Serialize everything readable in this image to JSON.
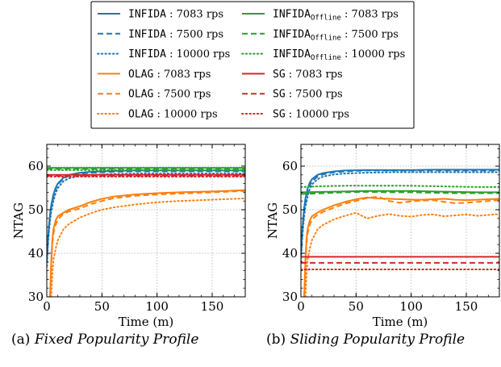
{
  "chart_data": [
    {
      "type": "line",
      "caption_tag": "(a)",
      "caption_title": "Fixed Popularity Profile",
      "xlabel": "Time (m)",
      "ylabel": "NTAG",
      "xlim": [
        0,
        180
      ],
      "ylim": [
        30,
        65
      ],
      "xticks": [
        0,
        50,
        100,
        150
      ],
      "yticks": [
        30,
        40,
        50,
        60
      ],
      "grid": true,
      "series": [
        {
          "id": "infida_7083",
          "color": "#1f77b4",
          "dash": "solid",
          "x": [
            0,
            1,
            2,
            3,
            4,
            6,
            8,
            10,
            15,
            20,
            30,
            40,
            60,
            80,
            100,
            120,
            150,
            180
          ],
          "y": [
            39,
            43,
            46.5,
            49,
            51,
            53.5,
            55,
            56,
            57.3,
            58,
            58.5,
            58.7,
            58.9,
            59,
            59,
            59,
            59,
            59
          ]
        },
        {
          "id": "infida_7500",
          "color": "#1f77b4",
          "dash": "dashed",
          "x": [
            0,
            1,
            2,
            3,
            4,
            6,
            8,
            10,
            15,
            20,
            30,
            40,
            60,
            80,
            100,
            120,
            150,
            180
          ],
          "y": [
            38,
            42.5,
            46,
            48.5,
            50.5,
            53,
            54.7,
            55.8,
            57.1,
            57.8,
            58.3,
            58.5,
            58.7,
            58.8,
            58.8,
            58.8,
            58.8,
            58.8
          ]
        },
        {
          "id": "infida_10000",
          "color": "#1f77b4",
          "dash": "dotted",
          "x": [
            0,
            1,
            2,
            3,
            4,
            6,
            8,
            10,
            15,
            20,
            30,
            40,
            60,
            80,
            100,
            120,
            150,
            180
          ],
          "y": [
            37,
            41.5,
            45,
            47.5,
            49.5,
            52,
            53.8,
            55,
            56.5,
            57.2,
            57.8,
            58,
            58.2,
            58.3,
            58.3,
            58.3,
            58.3,
            58.3
          ]
        },
        {
          "id": "offline_7083",
          "color": "#2ca02c",
          "dash": "solid",
          "x": [
            0,
            180
          ],
          "y": [
            59.6,
            59.6
          ]
        },
        {
          "id": "offline_7500",
          "color": "#2ca02c",
          "dash": "dashed",
          "x": [
            0,
            180
          ],
          "y": [
            59.4,
            59.4
          ]
        },
        {
          "id": "offline_10000",
          "color": "#2ca02c",
          "dash": "dotted",
          "x": [
            0,
            180
          ],
          "y": [
            59.1,
            59.1
          ]
        },
        {
          "id": "olag_7083",
          "color": "#ff7f0e",
          "dash": "solid",
          "x": [
            3,
            4,
            5,
            6,
            8,
            10,
            15,
            20,
            30,
            40,
            50,
            60,
            80,
            100,
            120,
            150,
            180
          ],
          "y": [
            30,
            38,
            43,
            45.5,
            47.5,
            48.5,
            49.3,
            50,
            50.8,
            51.8,
            52.5,
            53,
            53.5,
            53.8,
            54,
            54.2,
            54.5
          ]
        },
        {
          "id": "olag_7500",
          "color": "#ff7f0e",
          "dash": "dashed",
          "x": [
            3,
            4,
            5,
            6,
            8,
            10,
            15,
            20,
            30,
            40,
            50,
            60,
            80,
            100,
            120,
            150,
            180
          ],
          "y": [
            30,
            37,
            42,
            44.5,
            46.5,
            47.8,
            49,
            49.6,
            50.3,
            51.3,
            52,
            52.6,
            53.2,
            53.5,
            53.7,
            54,
            54.3
          ]
        },
        {
          "id": "olag_10000",
          "color": "#ff7f0e",
          "dash": "dotted",
          "x": [
            4,
            5,
            6,
            8,
            10,
            15,
            20,
            30,
            40,
            50,
            60,
            80,
            100,
            120,
            150,
            180
          ],
          "y": [
            30,
            35,
            38.5,
            41,
            43,
            45.5,
            46.7,
            48.2,
            49.2,
            50,
            50.5,
            51.2,
            51.7,
            52,
            52.3,
            52.6
          ]
        },
        {
          "id": "sg_7083",
          "color": "#d62728",
          "dash": "solid",
          "x": [
            0,
            180
          ],
          "y": [
            58,
            58
          ]
        },
        {
          "id": "sg_7500",
          "color": "#d62728",
          "dash": "dashed",
          "x": [
            0,
            180
          ],
          "y": [
            57.8,
            57.8
          ]
        },
        {
          "id": "sg_10000",
          "color": "#d62728",
          "dash": "dotted",
          "x": [
            0,
            180
          ],
          "y": [
            57.6,
            57.6
          ]
        }
      ]
    },
    {
      "type": "line",
      "caption_tag": "(b)",
      "caption_title": "Sliding Popularity Profile",
      "xlabel": "Time (m)",
      "ylabel": "NTAG",
      "xlim": [
        0,
        180
      ],
      "ylim": [
        30,
        65
      ],
      "xticks": [
        0,
        50,
        100,
        150
      ],
      "yticks": [
        30,
        40,
        50,
        60
      ],
      "grid": true,
      "series": [
        {
          "id": "infida_7083",
          "color": "#1f77b4",
          "dash": "solid",
          "x": [
            0,
            1,
            2,
            3,
            4,
            6,
            8,
            10,
            15,
            20,
            30,
            40,
            60,
            80,
            100,
            120,
            150,
            180
          ],
          "y": [
            40,
            44.5,
            48,
            50.5,
            52.5,
            54.8,
            56.2,
            57,
            58,
            58.4,
            58.8,
            59,
            59.1,
            59.1,
            59.1,
            59.2,
            59.2,
            59.2
          ]
        },
        {
          "id": "infida_7500",
          "color": "#1f77b4",
          "dash": "dashed",
          "x": [
            0,
            1,
            2,
            3,
            4,
            6,
            8,
            10,
            15,
            20,
            30,
            40,
            60,
            80,
            100,
            120,
            150,
            180
          ],
          "y": [
            39,
            43.5,
            47,
            49.5,
            51.5,
            54,
            55.6,
            56.5,
            57.6,
            58.1,
            58.6,
            58.8,
            59,
            59,
            59,
            59,
            59,
            59
          ]
        },
        {
          "id": "infida_10000",
          "color": "#1f77b4",
          "dash": "dotted",
          "x": [
            0,
            1,
            2,
            3,
            4,
            6,
            8,
            10,
            15,
            20,
            30,
            40,
            60,
            80,
            100,
            120,
            150,
            180
          ],
          "y": [
            38,
            42.5,
            46,
            48.5,
            50.5,
            53,
            54.8,
            55.8,
            57,
            57.6,
            58.1,
            58.3,
            58.5,
            58.6,
            58.6,
            58.6,
            58.6,
            58.6
          ]
        },
        {
          "id": "offline_7083",
          "color": "#2ca02c",
          "dash": "solid",
          "x": [
            0,
            20,
            40,
            60,
            80,
            100,
            120,
            140,
            160,
            180
          ],
          "y": [
            54,
            54.1,
            54.2,
            54.3,
            54.3,
            54.3,
            54.2,
            54.1,
            54,
            54
          ]
        },
        {
          "id": "offline_7500",
          "color": "#2ca02c",
          "dash": "dashed",
          "x": [
            0,
            20,
            40,
            60,
            80,
            100,
            120,
            140,
            160,
            180
          ],
          "y": [
            53.6,
            53.8,
            54,
            54.1,
            54,
            54,
            53.9,
            53.8,
            53.8,
            53.8
          ]
        },
        {
          "id": "offline_10000",
          "color": "#2ca02c",
          "dash": "dotted",
          "x": [
            0,
            20,
            40,
            60,
            80,
            100,
            120,
            140,
            160,
            180
          ],
          "y": [
            55.2,
            55.4,
            55.5,
            55.5,
            55.5,
            55.5,
            55.4,
            55.3,
            55.2,
            55.2
          ]
        },
        {
          "id": "olag_7083",
          "color": "#ff7f0e",
          "dash": "solid",
          "x": [
            3,
            4,
            5,
            6,
            8,
            10,
            15,
            20,
            30,
            40,
            50,
            60,
            70,
            80,
            90,
            100,
            110,
            120,
            130,
            140,
            150,
            160,
            170,
            180
          ],
          "y": [
            30,
            38,
            43,
            45.5,
            47.5,
            48.5,
            49.3,
            50,
            51,
            51.8,
            52.4,
            52.8,
            52.6,
            52.5,
            52.4,
            52.3,
            52.3,
            52.4,
            52.5,
            52.3,
            52.2,
            52.3,
            52.4,
            52.5
          ]
        },
        {
          "id": "olag_7500",
          "color": "#ff7f0e",
          "dash": "dashed",
          "x": [
            3,
            4,
            5,
            6,
            8,
            10,
            15,
            20,
            30,
            40,
            50,
            60,
            70,
            80,
            90,
            100,
            110,
            120,
            130,
            140,
            150,
            160,
            170,
            180
          ],
          "y": [
            30,
            37,
            42,
            44.5,
            46.5,
            47.8,
            48.8,
            49.5,
            50.5,
            51.4,
            52,
            52.7,
            53,
            52,
            51.6,
            51.9,
            52.1,
            52.2,
            51.8,
            51.5,
            51.6,
            51.8,
            52,
            52.2
          ]
        },
        {
          "id": "olag_10000",
          "color": "#ff7f0e",
          "dash": "dotted",
          "x": [
            4,
            5,
            6,
            8,
            10,
            15,
            20,
            30,
            40,
            50,
            60,
            70,
            80,
            90,
            100,
            110,
            120,
            130,
            140,
            150,
            160,
            170,
            180
          ],
          "y": [
            30,
            35,
            38.5,
            41,
            43,
            45.5,
            46.5,
            47.8,
            48.6,
            49.3,
            48,
            48.6,
            49,
            48.6,
            48.4,
            48.8,
            48.9,
            48.5,
            48.7,
            48.9,
            48.6,
            48.8,
            49
          ]
        },
        {
          "id": "sg_7083",
          "color": "#d62728",
          "dash": "solid",
          "x": [
            0,
            180
          ],
          "y": [
            39.2,
            39.2
          ]
        },
        {
          "id": "sg_7500",
          "color": "#d62728",
          "dash": "dashed",
          "x": [
            0,
            180
          ],
          "y": [
            37.8,
            37.8
          ]
        },
        {
          "id": "sg_10000",
          "color": "#d62728",
          "dash": "dotted",
          "x": [
            0,
            180
          ],
          "y": [
            36.3,
            36.3
          ]
        }
      ]
    }
  ],
  "legend": {
    "placement": "top-center",
    "columns": [
      [
        {
          "series": "infida_7083",
          "algo": "INFIDA",
          "sub": "",
          "sep": " : ",
          "rate": "7083 rps",
          "color": "#1f77b4",
          "dash": "solid"
        },
        {
          "series": "infida_7500",
          "algo": "INFIDA",
          "sub": "",
          "sep": " : ",
          "rate": "7500 rps",
          "color": "#1f77b4",
          "dash": "dashed"
        },
        {
          "series": "infida_10000",
          "algo": "INFIDA",
          "sub": "",
          "sep": " : ",
          "rate": "10000 rps",
          "color": "#1f77b4",
          "dash": "dotted"
        },
        {
          "series": "olag_7083",
          "algo": "OLAG",
          "sub": "",
          "sep": " : ",
          "rate": "7083 rps",
          "color": "#ff7f0e",
          "dash": "solid"
        },
        {
          "series": "olag_7500",
          "algo": "OLAG",
          "sub": "",
          "sep": " : ",
          "rate": "7500 rps",
          "color": "#ff7f0e",
          "dash": "dashed"
        },
        {
          "series": "olag_10000",
          "algo": "OLAG",
          "sub": "",
          "sep": " : ",
          "rate": "10000 rps",
          "color": "#ff7f0e",
          "dash": "dotted"
        }
      ],
      [
        {
          "series": "offline_7083",
          "algo": "INFIDA",
          "sub": "Offline",
          "sep": " : ",
          "rate": "7083 rps",
          "color": "#2ca02c",
          "dash": "solid"
        },
        {
          "series": "offline_7500",
          "algo": "INFIDA",
          "sub": "Offline",
          "sep": " : ",
          "rate": "7500 rps",
          "color": "#2ca02c",
          "dash": "dashed"
        },
        {
          "series": "offline_10000",
          "algo": "INFIDA",
          "sub": "Offline",
          "sep": " : ",
          "rate": "10000 rps",
          "color": "#2ca02c",
          "dash": "dotted"
        },
        {
          "series": "sg_7083",
          "algo": "SG",
          "sub": "",
          "sep": " : ",
          "rate": "7083 rps",
          "color": "#d62728",
          "dash": "solid"
        },
        {
          "series": "sg_7500",
          "algo": "SG",
          "sub": "",
          "sep": " : ",
          "rate": "7500 rps",
          "color": "#d62728",
          "dash": "dashed"
        },
        {
          "series": "sg_10000",
          "algo": "SG",
          "sub": "",
          "sep": " : ",
          "rate": "10000 rps",
          "color": "#d62728",
          "dash": "dotted"
        }
      ]
    ]
  }
}
